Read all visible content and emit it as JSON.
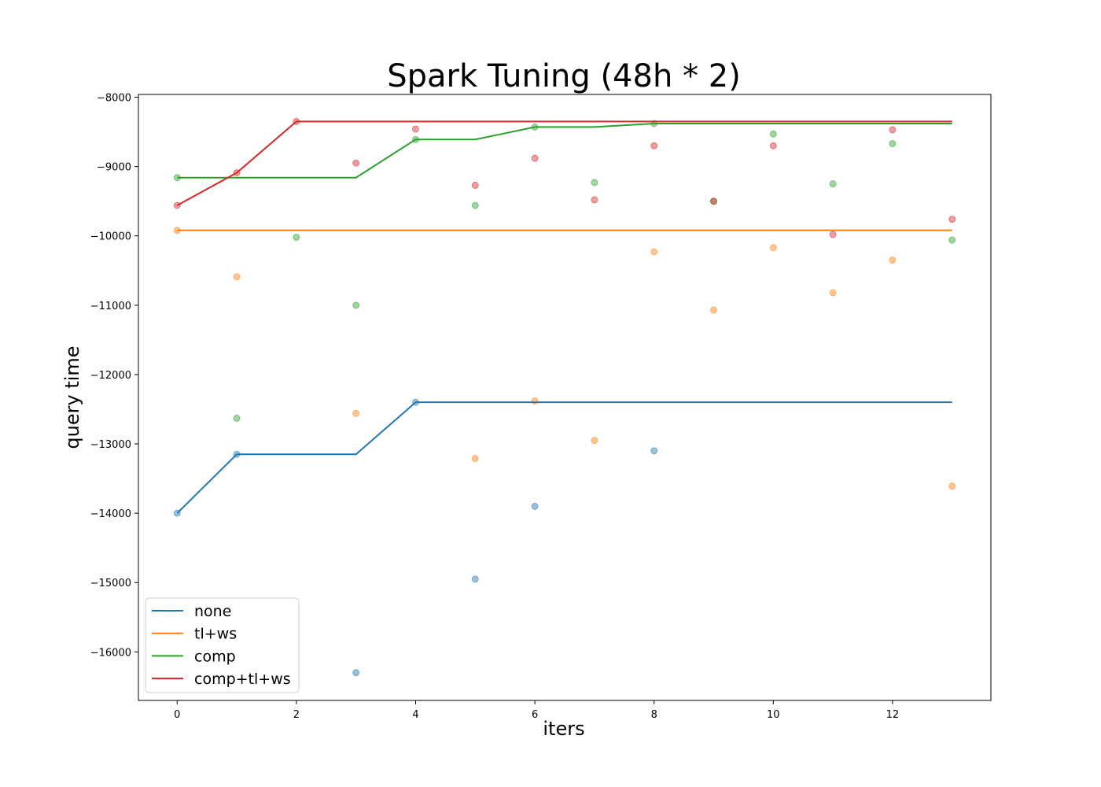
{
  "chart_data": {
    "type": "line",
    "title": "Spark Tuning (48h * 2)",
    "xlabel": "iters",
    "ylabel": "query time",
    "xlim": [
      -0.65,
      13.65
    ],
    "ylim": [
      -16700,
      -7960
    ],
    "xticks": [
      0,
      2,
      4,
      6,
      8,
      10,
      12
    ],
    "yticks": [
      -16000,
      -15000,
      -14000,
      -13000,
      -12000,
      -11000,
      -10000,
      -9000,
      -8000
    ],
    "grid": false,
    "legend_position": "lower-left",
    "x": [
      0,
      1,
      2,
      3,
      4,
      5,
      6,
      7,
      8,
      9,
      10,
      11,
      12,
      13
    ],
    "series": [
      {
        "name": "none",
        "color": "#1f77b4",
        "best": [
          -14000,
          -13150,
          -13150,
          -13150,
          -12400,
          -12400,
          -12400,
          -12400,
          -12400,
          -12400,
          -12400,
          -12400,
          -12400,
          -12400
        ],
        "points": [
          {
            "x": 0,
            "y": -14000
          },
          {
            "x": 1,
            "y": -13150
          },
          {
            "x": 3,
            "y": -16300
          },
          {
            "x": 4,
            "y": -12400
          },
          {
            "x": 5,
            "y": -14950
          },
          {
            "x": 6,
            "y": -13900
          },
          {
            "x": 8,
            "y": -13100
          }
        ]
      },
      {
        "name": "tl+ws",
        "color": "#ff7f0e",
        "best": [
          -9920,
          -9920,
          -9920,
          -9920,
          -9920,
          -9920,
          -9920,
          -9920,
          -9920,
          -9920,
          -9920,
          -9920,
          -9920,
          -9920
        ],
        "points": [
          {
            "x": 0,
            "y": -9920
          },
          {
            "x": 1,
            "y": -10590
          },
          {
            "x": 3,
            "y": -12560
          },
          {
            "x": 5,
            "y": -13210
          },
          {
            "x": 6,
            "y": -12380
          },
          {
            "x": 7,
            "y": -12950
          },
          {
            "x": 8,
            "y": -10230
          },
          {
            "x": 9,
            "y": -11070
          },
          {
            "x": 10,
            "y": -10170
          },
          {
            "x": 11,
            "y": -10820
          },
          {
            "x": 12,
            "y": -10350
          },
          {
            "x": 13,
            "y": -13610
          }
        ]
      },
      {
        "name": "comp",
        "color": "#2ca02c",
        "best": [
          -9160,
          -9160,
          -9160,
          -9160,
          -8610,
          -8610,
          -8430,
          -8430,
          -8380,
          -8380,
          -8380,
          -8380,
          -8380,
          -8380
        ],
        "points": [
          {
            "x": 0,
            "y": -9160
          },
          {
            "x": 1,
            "y": -12630
          },
          {
            "x": 2,
            "y": -10020
          },
          {
            "x": 3,
            "y": -11000
          },
          {
            "x": 4,
            "y": -8610
          },
          {
            "x": 5,
            "y": -9560
          },
          {
            "x": 6,
            "y": -8430
          },
          {
            "x": 7,
            "y": -9230
          },
          {
            "x": 8,
            "y": -8380
          },
          {
            "x": 9,
            "y": -9500
          },
          {
            "x": 10,
            "y": -8530
          },
          {
            "x": 11,
            "y": -9250
          },
          {
            "x": 12,
            "y": -8670
          },
          {
            "x": 13,
            "y": -10060
          }
        ]
      },
      {
        "name": "comp+tl+ws",
        "color": "#d62728",
        "best": [
          -9560,
          -9090,
          -8350,
          -8350,
          -8350,
          -8350,
          -8350,
          -8350,
          -8350,
          -8350,
          -8350,
          -8350,
          -8350,
          -8350
        ],
        "points": [
          {
            "x": 0,
            "y": -9560
          },
          {
            "x": 1,
            "y": -9090
          },
          {
            "x": 2,
            "y": -8350
          },
          {
            "x": 3,
            "y": -8950
          },
          {
            "x": 4,
            "y": -8460
          },
          {
            "x": 5,
            "y": -9270
          },
          {
            "x": 6,
            "y": -8880
          },
          {
            "x": 7,
            "y": -9480
          },
          {
            "x": 8,
            "y": -8700
          },
          {
            "x": 9,
            "y": -9500
          },
          {
            "x": 10,
            "y": -8700
          },
          {
            "x": 11,
            "y": -9980
          },
          {
            "x": 12,
            "y": -8470
          },
          {
            "x": 13,
            "y": -9760
          }
        ]
      }
    ]
  }
}
